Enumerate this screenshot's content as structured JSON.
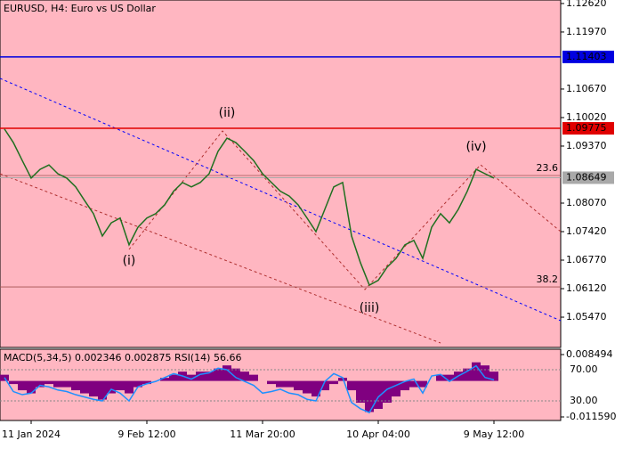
{
  "chart_data": {
    "type": "line",
    "title": "EURUSD, H4:  Euro vs US Dollar",
    "categories": [
      null,
      null,
      null,
      "11 Jan 2024",
      null,
      null,
      null,
      null,
      null,
      null,
      null,
      null,
      null,
      null,
      null,
      null,
      "9 Feb 12:00",
      null,
      null,
      null,
      null,
      null,
      null,
      null,
      null,
      null,
      null,
      null,
      null,
      "11 Mar 20:00",
      null,
      null,
      null,
      null,
      null,
      null,
      null,
      null,
      null,
      null,
      null,
      null,
      "10 Apr 04:00",
      null,
      null,
      null,
      null,
      null,
      null,
      null,
      null,
      null,
      null,
      null,
      null,
      "9 May 12:00"
    ],
    "values": [
      1.0976,
      1.0945,
      1.0904,
      1.0864,
      1.0884,
      1.0894,
      1.0874,
      1.0864,
      1.0844,
      1.0813,
      1.0783,
      1.0732,
      1.0762,
      1.0773,
      1.0712,
      1.0752,
      1.0773,
      1.0783,
      1.0803,
      1.0834,
      1.0854,
      1.0844,
      1.0854,
      1.0874,
      1.0925,
      1.0955,
      1.0945,
      1.0925,
      1.0904,
      1.0874,
      1.0854,
      1.0834,
      1.0823,
      1.0803,
      1.0773,
      1.0742,
      1.0793,
      1.0844,
      1.0854,
      1.0732,
      1.0671,
      1.062,
      1.0631,
      1.0661,
      1.0681,
      1.0712,
      1.0722,
      1.0681,
      1.0752,
      1.0783,
      1.0762,
      1.0793,
      1.0834,
      1.0884,
      1.0874,
      1.0864
    ],
    "color": "#1f6f1f",
    "ylim": [
      1.0478,
      1.127
    ],
    "yticks": [
      {
        "value": 1.1262,
        "label": "1.12620"
      },
      {
        "value": 1.1197,
        "label": "1.11970"
      },
      {
        "value": 1.1067,
        "label": "1.10670"
      },
      {
        "value": 1.1002,
        "label": "1.10020"
      },
      {
        "value": 1.0937,
        "label": "1.09370"
      },
      {
        "value": 1.0807,
        "label": "1.08070"
      },
      {
        "value": 1.0742,
        "label": "1.07420"
      },
      {
        "value": 1.0677,
        "label": "1.06770"
      },
      {
        "value": 1.0612,
        "label": "1.06120"
      },
      {
        "value": 1.0547,
        "label": "1.05470"
      }
    ],
    "levels": [
      {
        "value": 1.11403,
        "color": "#0000e0"
      },
      {
        "value": 1.09775,
        "color": "#e00000"
      },
      {
        "value": 1.08649,
        "color": "#a9a9a9"
      }
    ],
    "fib_levels": [
      {
        "label": "23.6",
        "value": 1.087
      },
      {
        "label": "38.2",
        "value": 1.0616
      }
    ],
    "waves": [
      "(i)",
      "(ii)",
      "(iii)",
      "(iv)"
    ],
    "indicator": {
      "title": "MACD(5,34,5) 0.002346 0.002875 RSI(14) 56.66",
      "macd": {
        "color": "#800080",
        "ylim": [
          -0.012738,
          0.010216
        ],
        "yticks": [
          {
            "value": 0.008494,
            "label": "0.008494"
          },
          {
            "value": -0.01159,
            "label": "-0.011590"
          }
        ],
        "values": [
          0.002,
          -0.001,
          -0.003,
          -0.004,
          -0.002,
          -0.001,
          -0.002,
          -0.002,
          -0.003,
          -0.004,
          -0.005,
          -0.006,
          -0.004,
          -0.003,
          -0.004,
          -0.002,
          -0.001,
          0.0,
          0.001,
          0.002,
          0.003,
          0.002,
          0.003,
          0.003,
          0.004,
          0.005,
          0.004,
          0.003,
          0.002,
          0.0,
          -0.001,
          -0.002,
          -0.002,
          -0.003,
          -0.004,
          -0.005,
          -0.003,
          -0.001,
          0.001,
          -0.003,
          -0.007,
          -0.01,
          -0.009,
          -0.007,
          -0.005,
          -0.003,
          -0.002,
          -0.002,
          0.0,
          0.002,
          0.002,
          0.003,
          0.004,
          0.006,
          0.005,
          0.003
        ]
      },
      "rsi": {
        "color": "#1e90ff",
        "ylim": [
          4.9,
          96.3
        ],
        "yticks": [
          {
            "value": 70,
            "label": "70.00"
          },
          {
            "value": 30,
            "label": "30.00"
          }
        ],
        "values": [
          60,
          42,
          38,
          40,
          50,
          48,
          44,
          42,
          38,
          35,
          32,
          30,
          45,
          40,
          30,
          48,
          52,
          55,
          60,
          65,
          62,
          58,
          64,
          66,
          72,
          70,
          60,
          55,
          50,
          40,
          42,
          45,
          40,
          38,
          32,
          30,
          55,
          65,
          60,
          28,
          20,
          15,
          35,
          45,
          50,
          55,
          58,
          40,
          62,
          64,
          55,
          62,
          68,
          75,
          60,
          57
        ]
      }
    }
  }
}
